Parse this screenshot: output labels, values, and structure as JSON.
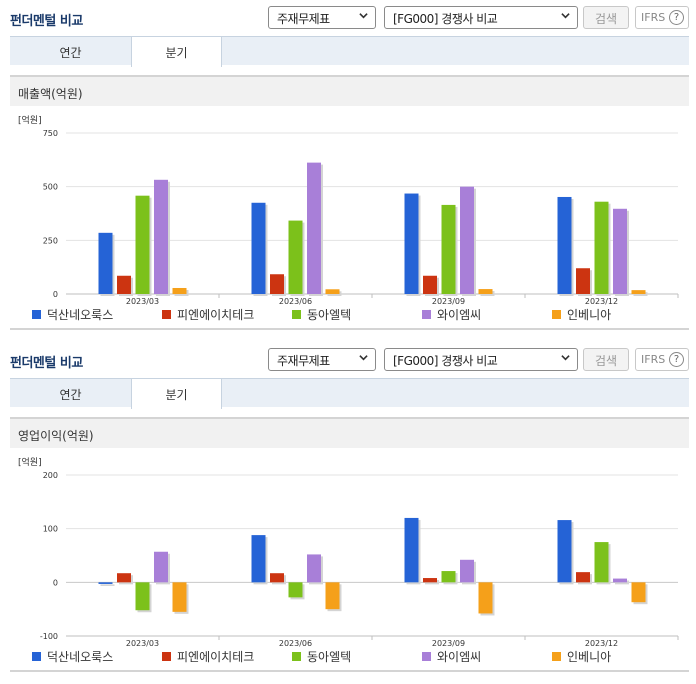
{
  "panels": [
    {
      "header": {
        "title": "펀더멘털 비교",
        "select1": "주재무제표",
        "select2": "[FG000] 경쟁사 비교",
        "search_label": "검색",
        "ifrs_label": "IFRS",
        "help": "?"
      },
      "tabs": [
        {
          "label": "연간",
          "active": false
        },
        {
          "label": "분기",
          "active": true
        }
      ],
      "chart_title": "매출액(억원)",
      "chart_data": {
        "type": "bar",
        "unit_label": "[억원]",
        "categories": [
          "2023/03",
          "2023/06",
          "2023/09",
          "2023/12"
        ],
        "ylim": [
          0,
          750
        ],
        "yticks": [
          0,
          250,
          500,
          750
        ],
        "grid": true,
        "legend_position": "bottom",
        "series": [
          {
            "name": "덕산네오룩스",
            "color": "#2563d6",
            "values": [
              285,
              425,
              468,
              452
            ]
          },
          {
            "name": "피엔에이치테크",
            "color": "#cc3411",
            "values": [
              85,
              92,
              85,
              120
            ]
          },
          {
            "name": "동아엘텍",
            "color": "#7cc11b",
            "values": [
              458,
              342,
              415,
              430
            ]
          },
          {
            "name": "와이엠씨",
            "color": "#a87fd8",
            "values": [
              532,
              612,
              500,
              397
            ]
          },
          {
            "name": "인베니아",
            "color": "#f5a01a",
            "values": [
              28,
              22,
              23,
              18
            ]
          }
        ]
      }
    },
    {
      "header": {
        "title": "펀더멘털 비교",
        "select1": "주재무제표",
        "select2": "[FG000] 경쟁사 비교",
        "search_label": "검색",
        "ifrs_label": "IFRS",
        "help": "?"
      },
      "tabs": [
        {
          "label": "연간",
          "active": false
        },
        {
          "label": "분기",
          "active": true
        }
      ],
      "chart_title": "영업이익(억원)",
      "chart_data": {
        "type": "bar",
        "unit_label": "[억원]",
        "categories": [
          "2023/03",
          "2023/06",
          "2023/09",
          "2023/12"
        ],
        "ylim": [
          -100,
          200
        ],
        "yticks": [
          -100,
          0,
          100,
          200
        ],
        "grid": true,
        "legend_position": "bottom",
        "series": [
          {
            "name": "덕산네오룩스",
            "color": "#2563d6",
            "values": [
              -3,
              88,
              120,
              116
            ]
          },
          {
            "name": "피엔에이치테크",
            "color": "#cc3411",
            "values": [
              17,
              17,
              8,
              19
            ]
          },
          {
            "name": "동아엘텍",
            "color": "#7cc11b",
            "values": [
              -52,
              -28,
              21,
              75
            ]
          },
          {
            "name": "와이엠씨",
            "color": "#a87fd8",
            "values": [
              57,
              52,
              42,
              7
            ]
          },
          {
            "name": "인베니아",
            "color": "#f5a01a",
            "values": [
              -55,
              -50,
              -58,
              -37
            ]
          }
        ]
      }
    }
  ]
}
